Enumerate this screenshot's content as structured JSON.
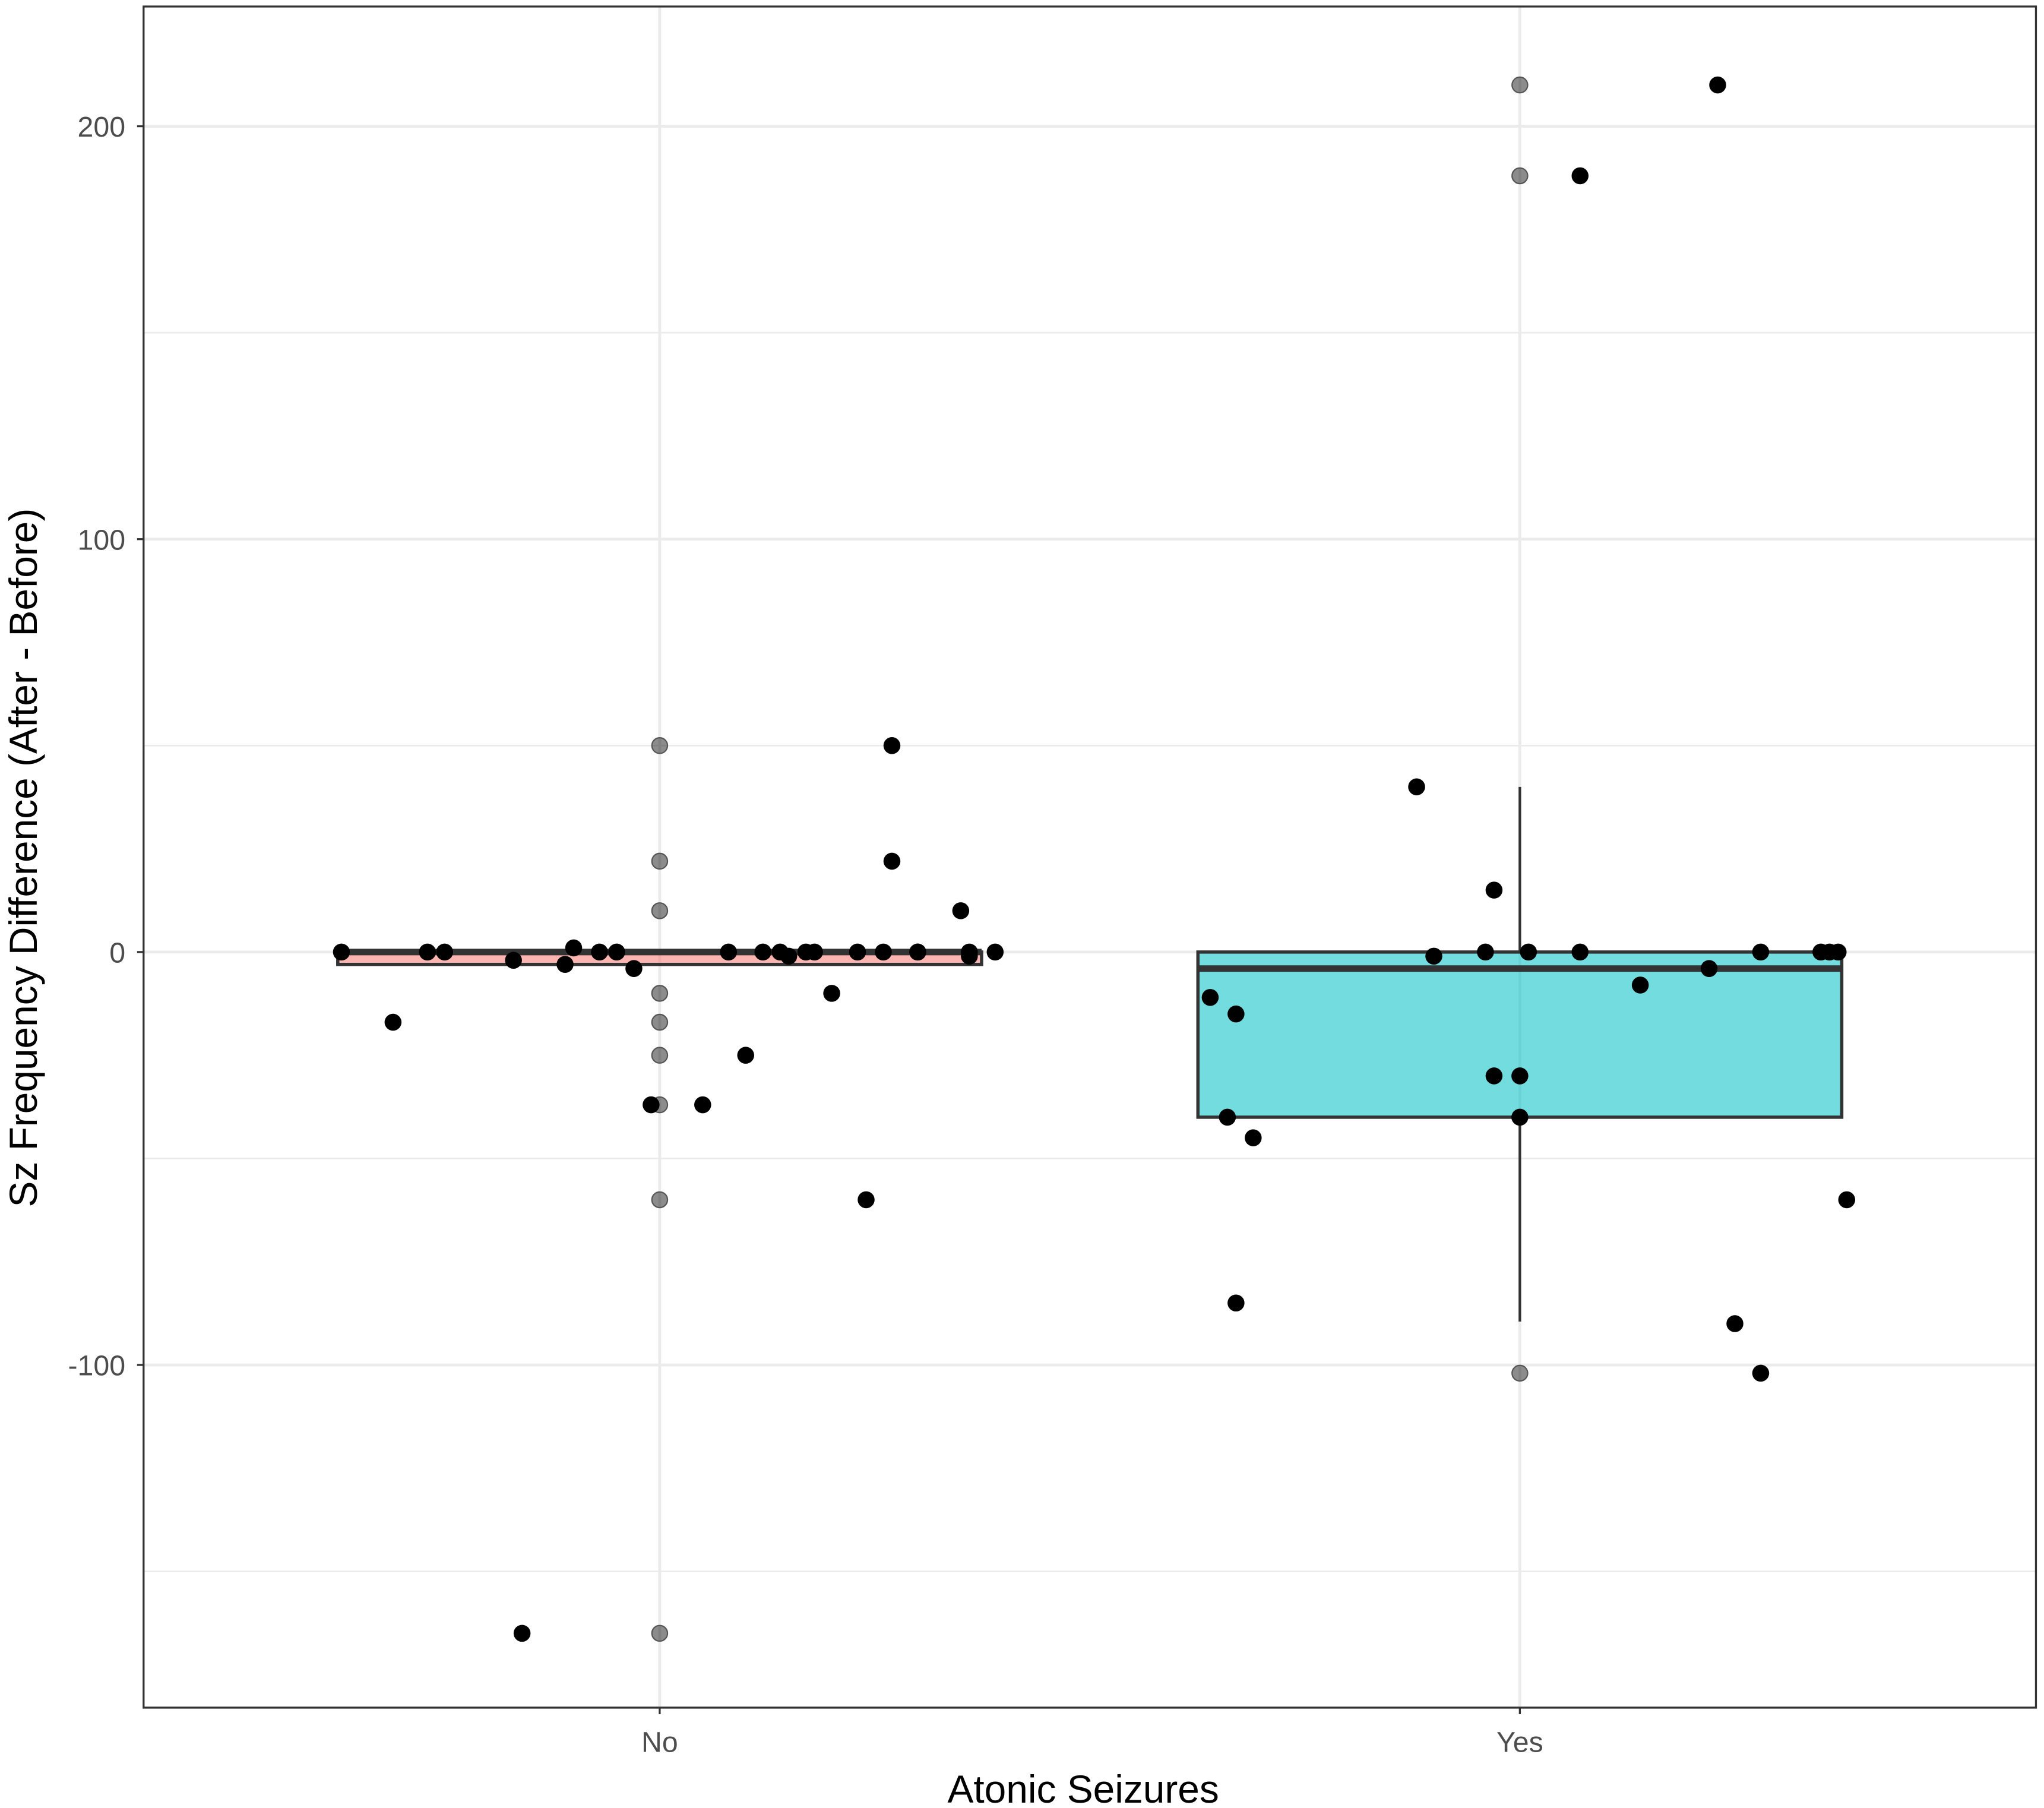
{
  "chart_data": {
    "type": "boxplot",
    "title": "",
    "xlabel": "Atonic Seizures",
    "ylabel": "Sz Frequency Difference (After - Before)",
    "categories": [
      "No",
      "Yes"
    ],
    "ylim": [
      -183,
      229
    ],
    "yticks": [
      -100,
      0,
      100,
      200
    ],
    "ytick_labels": [
      "-100",
      "0",
      "100",
      "200"
    ],
    "grid": true,
    "colors": {
      "No": "#f8766d",
      "Yes": "#00bfc4"
    },
    "boxes": [
      {
        "category": "No",
        "q1": -3,
        "median": 0,
        "q3": 0,
        "whisker_low": -3,
        "whisker_high": 0,
        "outliers": [
          50,
          22,
          10,
          -10,
          -17,
          -25,
          -37,
          -60,
          -165
        ]
      },
      {
        "category": "Yes",
        "q1": -40,
        "median": -4,
        "q3": 0,
        "whisker_low": -89.5,
        "whisker_high": 40,
        "outliers": [
          210,
          188,
          -102
        ]
      }
    ],
    "points": [
      {
        "cat": "No",
        "dx": -0.37,
        "y": 0
      },
      {
        "cat": "No",
        "dx": -0.31,
        "y": -17
      },
      {
        "cat": "No",
        "dx": -0.27,
        "y": 0
      },
      {
        "cat": "No",
        "dx": -0.25,
        "y": 0
      },
      {
        "cat": "No",
        "dx": -0.17,
        "y": -2
      },
      {
        "cat": "No",
        "dx": -0.11,
        "y": -3
      },
      {
        "cat": "No",
        "dx": -0.1,
        "y": 1
      },
      {
        "cat": "No",
        "dx": -0.07,
        "y": 0
      },
      {
        "cat": "No",
        "dx": -0.05,
        "y": 0
      },
      {
        "cat": "No",
        "dx": -0.03,
        "y": -4
      },
      {
        "cat": "No",
        "dx": -0.01,
        "y": -37
      },
      {
        "cat": "No",
        "dx": 0.05,
        "y": -37
      },
      {
        "cat": "No",
        "dx": 0.08,
        "y": 0
      },
      {
        "cat": "No",
        "dx": 0.1,
        "y": -25
      },
      {
        "cat": "No",
        "dx": 0.12,
        "y": 0
      },
      {
        "cat": "No",
        "dx": 0.14,
        "y": 0
      },
      {
        "cat": "No",
        "dx": 0.15,
        "y": -1
      },
      {
        "cat": "No",
        "dx": 0.17,
        "y": 0
      },
      {
        "cat": "No",
        "dx": 0.18,
        "y": 0
      },
      {
        "cat": "No",
        "dx": 0.2,
        "y": -10
      },
      {
        "cat": "No",
        "dx": 0.23,
        "y": 0
      },
      {
        "cat": "No",
        "dx": 0.24,
        "y": -60
      },
      {
        "cat": "No",
        "dx": 0.26,
        "y": 0
      },
      {
        "cat": "No",
        "dx": 0.27,
        "y": 22
      },
      {
        "cat": "No",
        "dx": 0.27,
        "y": 50
      },
      {
        "cat": "No",
        "dx": 0.3,
        "y": 0
      },
      {
        "cat": "No",
        "dx": 0.3,
        "y": 0
      },
      {
        "cat": "No",
        "dx": 0.35,
        "y": 10
      },
      {
        "cat": "No",
        "dx": 0.36,
        "y": 0
      },
      {
        "cat": "No",
        "dx": 0.36,
        "y": -1
      },
      {
        "cat": "No",
        "dx": 0.39,
        "y": 0
      },
      {
        "cat": "No",
        "dx": -0.16,
        "y": -165
      },
      {
        "cat": "Yes",
        "dx": -0.36,
        "y": -11
      },
      {
        "cat": "Yes",
        "dx": -0.34,
        "y": -40
      },
      {
        "cat": "Yes",
        "dx": -0.33,
        "y": -15
      },
      {
        "cat": "Yes",
        "dx": -0.33,
        "y": -85
      },
      {
        "cat": "Yes",
        "dx": -0.31,
        "y": -45
      },
      {
        "cat": "Yes",
        "dx": -0.12,
        "y": 40
      },
      {
        "cat": "Yes",
        "dx": -0.1,
        "y": -1
      },
      {
        "cat": "Yes",
        "dx": -0.04,
        "y": 0
      },
      {
        "cat": "Yes",
        "dx": -0.03,
        "y": -30
      },
      {
        "cat": "Yes",
        "dx": -0.03,
        "y": 15
      },
      {
        "cat": "Yes",
        "dx": 0.0,
        "y": -30
      },
      {
        "cat": "Yes",
        "dx": 0.0,
        "y": -40
      },
      {
        "cat": "Yes",
        "dx": 0.01,
        "y": 0
      },
      {
        "cat": "Yes",
        "dx": 0.07,
        "y": 188
      },
      {
        "cat": "Yes",
        "dx": 0.07,
        "y": 0
      },
      {
        "cat": "Yes",
        "dx": 0.14,
        "y": -8
      },
      {
        "cat": "Yes",
        "dx": 0.22,
        "y": -4
      },
      {
        "cat": "Yes",
        "dx": 0.23,
        "y": 210
      },
      {
        "cat": "Yes",
        "dx": 0.25,
        "y": -90
      },
      {
        "cat": "Yes",
        "dx": 0.28,
        "y": -102
      },
      {
        "cat": "Yes",
        "dx": 0.28,
        "y": 0
      },
      {
        "cat": "Yes",
        "dx": 0.35,
        "y": 0
      },
      {
        "cat": "Yes",
        "dx": 0.36,
        "y": 0
      },
      {
        "cat": "Yes",
        "dx": 0.37,
        "y": 0
      },
      {
        "cat": "Yes",
        "dx": 0.38,
        "y": -60
      }
    ]
  }
}
